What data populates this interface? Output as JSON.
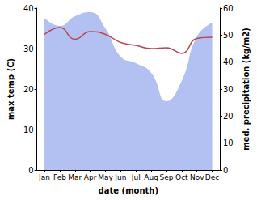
{
  "chart_data": {
    "type": "line",
    "xlabel": "date (month)",
    "ylabel": "max temp (C)",
    "y2label": "med. precipitation (kg/m2)",
    "categories": [
      "Jan",
      "Feb",
      "Mar",
      "Apr",
      "May",
      "Jun",
      "Jul",
      "Aug",
      "Sep",
      "Oct",
      "Nov",
      "Dec"
    ],
    "ylim": [
      0,
      40
    ],
    "yticks": [
      0,
      10,
      20,
      30,
      40
    ],
    "y2lim": [
      0,
      60
    ],
    "y2ticks": [
      0,
      10,
      20,
      30,
      40,
      50,
      60
    ],
    "grid": false,
    "series": [
      {
        "type": "area",
        "axis": "y2",
        "color": "#b3c1f2",
        "values": [
          56.4,
          53.4,
          57.0,
          58.5,
          52.5,
          42.0,
          39.6,
          36.0,
          25.5,
          33.0,
          49.5,
          54.6
        ]
      },
      {
        "type": "line",
        "color": "#b8474e",
        "values": [
          33.5,
          35.2,
          32.3,
          34.2,
          33.5,
          31.5,
          30.8,
          30.0,
          30.2,
          28.8,
          32.5,
          32.8
        ]
      }
    ]
  }
}
